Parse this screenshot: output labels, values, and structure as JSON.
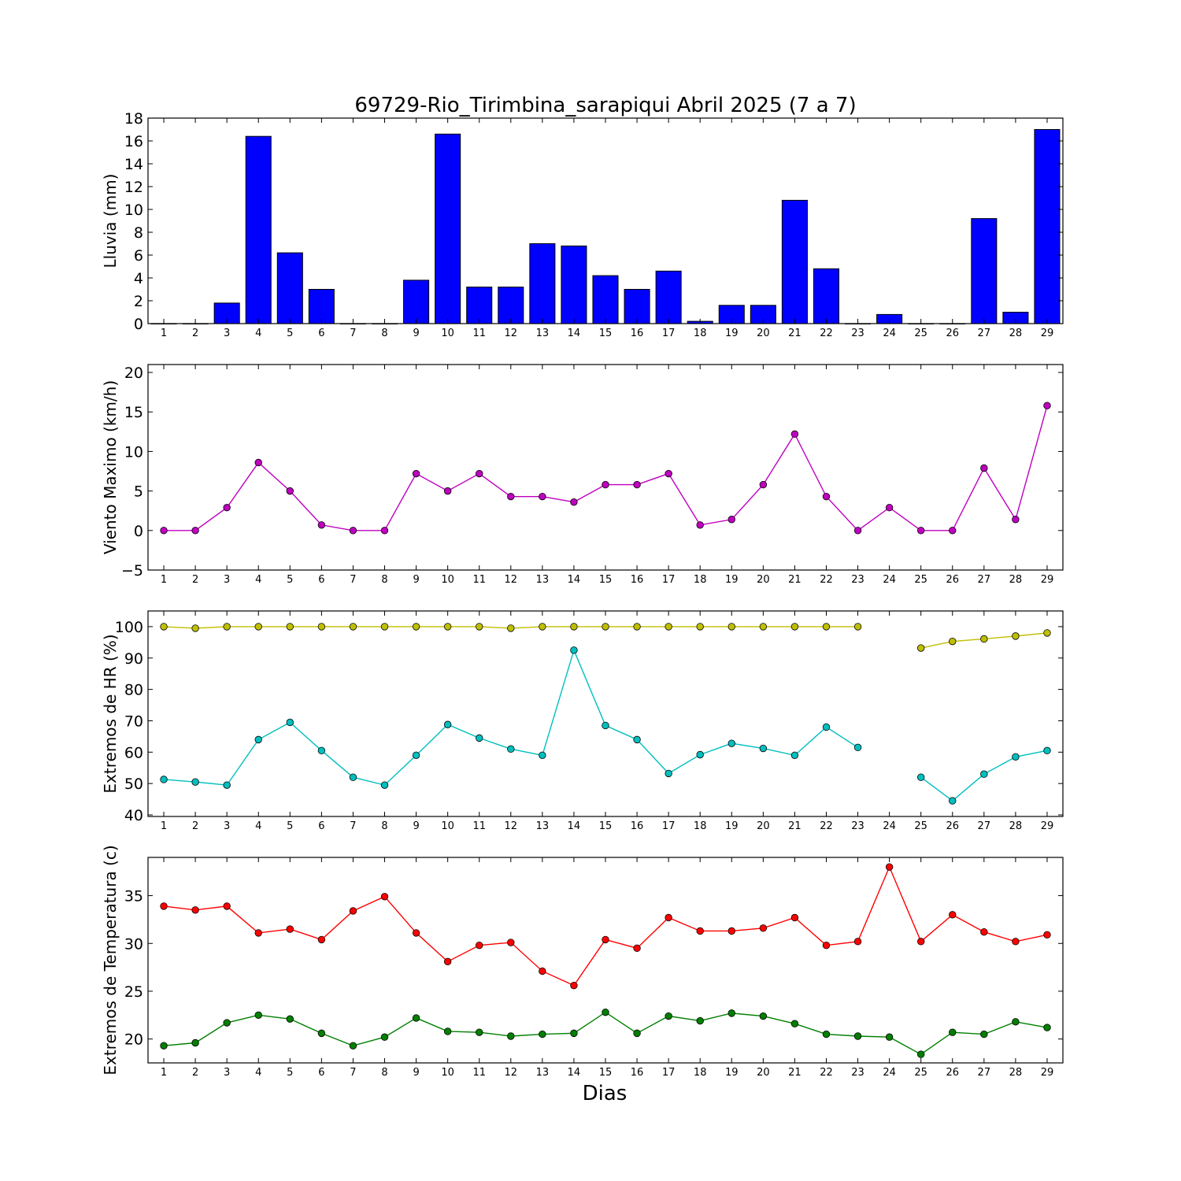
{
  "chart_data": [
    {
      "type": "bar",
      "title": "69729-Rio_Tirimbina_sarapiqui Abril 2025  (7 a 7)",
      "ylabel": "Lluvia (mm)",
      "xlabel": "",
      "categories": [
        "1",
        "2",
        "3",
        "4",
        "5",
        "6",
        "7",
        "8",
        "9",
        "10",
        "11",
        "12",
        "13",
        "14",
        "15",
        "16",
        "17",
        "18",
        "19",
        "20",
        "21",
        "22",
        "23",
        "24",
        "25",
        "26",
        "27",
        "28",
        "29"
      ],
      "ylim": [
        0,
        18
      ],
      "yticks": [
        "0",
        "2",
        "4",
        "6",
        "8",
        "10",
        "12",
        "14",
        "16",
        "18"
      ],
      "values": [
        0,
        0,
        1.8,
        16.4,
        6.2,
        3.0,
        0,
        0,
        3.8,
        16.6,
        3.2,
        3.2,
        7.0,
        6.8,
        4.2,
        3.0,
        4.6,
        0.2,
        1.6,
        1.6,
        10.8,
        4.8,
        0,
        0.8,
        0,
        0,
        9.2,
        1.0,
        17.0
      ],
      "color": "#0000ff"
    },
    {
      "type": "line",
      "title": "",
      "ylabel": "Viento Maximo (km/h)",
      "xlabel": "",
      "categories": [
        "1",
        "2",
        "3",
        "4",
        "5",
        "6",
        "7",
        "8",
        "9",
        "10",
        "11",
        "12",
        "13",
        "14",
        "15",
        "16",
        "17",
        "18",
        "19",
        "20",
        "21",
        "22",
        "23",
        "24",
        "25",
        "26",
        "27",
        "28",
        "29"
      ],
      "ylim": [
        -5,
        21
      ],
      "yticks": [
        "−5",
        "0",
        "5",
        "10",
        "15",
        "20"
      ],
      "series": [
        {
          "color": "#bf00bf",
          "values": [
            0,
            0,
            2.9,
            8.6,
            5.0,
            0.7,
            0,
            0,
            7.2,
            5.0,
            7.2,
            4.3,
            4.3,
            3.6,
            5.8,
            5.8,
            7.2,
            0.7,
            1.4,
            5.8,
            12.2,
            4.3,
            0,
            2.9,
            0,
            0,
            7.9,
            1.4,
            15.8
          ]
        }
      ]
    },
    {
      "type": "line",
      "title": "",
      "ylabel": "Extremos de HR (%)",
      "xlabel": "",
      "categories": [
        "1",
        "2",
        "3",
        "4",
        "5",
        "6",
        "7",
        "8",
        "9",
        "10",
        "11",
        "12",
        "13",
        "14",
        "15",
        "16",
        "17",
        "18",
        "19",
        "20",
        "21",
        "22",
        "23",
        "24",
        "25",
        "26",
        "27",
        "28",
        "29"
      ],
      "ylim": [
        39.5,
        105
      ],
      "yticks": [
        "40",
        "50",
        "60",
        "70",
        "80",
        "90",
        "100"
      ],
      "series": [
        {
          "color": "#bfbf00",
          "values": [
            100,
            99.5,
            100,
            100,
            100,
            100,
            100,
            100,
            100,
            100,
            100,
            99.5,
            100,
            100,
            100,
            100,
            100,
            100,
            100,
            100,
            100,
            100,
            100,
            null,
            93.2,
            95.3,
            96.1,
            97.0,
            98.0
          ]
        },
        {
          "color": "#00bfbf",
          "values": [
            51.3,
            50.5,
            49.5,
            64.0,
            69.5,
            60.5,
            52.0,
            49.5,
            59.0,
            68.8,
            64.5,
            61.0,
            59.0,
            92.5,
            68.5,
            64.0,
            53.2,
            59.2,
            62.8,
            61.2,
            59.0,
            68.0,
            61.5,
            null,
            52.0,
            44.5,
            53.0,
            58.5,
            60.5
          ]
        }
      ]
    },
    {
      "type": "line",
      "title": "",
      "ylabel": "Extremos de Temperatura (c)",
      "xlabel": "Dias",
      "categories": [
        "1",
        "2",
        "3",
        "4",
        "5",
        "6",
        "7",
        "8",
        "9",
        "10",
        "11",
        "12",
        "13",
        "14",
        "15",
        "16",
        "17",
        "18",
        "19",
        "20",
        "21",
        "22",
        "23",
        "24",
        "25",
        "26",
        "27",
        "28",
        "29"
      ],
      "ylim": [
        17.5,
        39
      ],
      "yticks": [
        "20",
        "25",
        "30",
        "35"
      ],
      "series": [
        {
          "color": "#ff0000",
          "values": [
            33.9,
            33.5,
            33.9,
            31.1,
            31.5,
            30.4,
            33.4,
            34.9,
            31.1,
            28.1,
            29.8,
            30.1,
            27.1,
            25.6,
            30.4,
            29.5,
            32.7,
            31.3,
            31.3,
            31.6,
            32.7,
            29.8,
            30.2,
            38.0,
            30.2,
            33.0,
            31.2,
            30.2,
            30.9
          ]
        },
        {
          "color": "#007f00",
          "values": [
            19.3,
            19.6,
            21.7,
            22.5,
            22.1,
            20.6,
            19.3,
            20.2,
            22.2,
            20.8,
            20.7,
            20.3,
            20.5,
            20.6,
            22.8,
            20.6,
            22.4,
            21.9,
            22.7,
            22.4,
            21.6,
            20.5,
            20.3,
            20.2,
            18.4,
            20.7,
            20.5,
            21.8,
            21.2
          ]
        }
      ]
    }
  ]
}
